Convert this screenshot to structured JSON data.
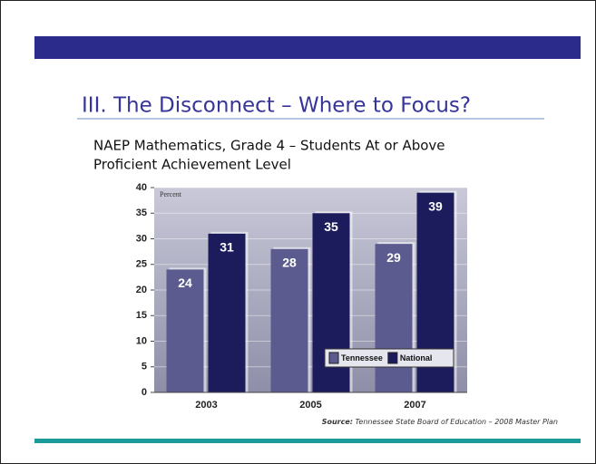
{
  "slide_title": "III. The Disconnect – Where to Focus?",
  "chart_data": {
    "type": "bar",
    "title": [
      "NAEP Mathematics, Grade 4 – Students At or Above",
      "Proficient Achievement Level"
    ],
    "y_label": "Percent",
    "categories": [
      "2003",
      "2005",
      "2007"
    ],
    "series": [
      {
        "name": "Tennessee",
        "color": "#5b5b8f",
        "values": [
          24,
          28,
          29
        ]
      },
      {
        "name": "National",
        "color": "#1c1c5c",
        "values": [
          31,
          35,
          39
        ]
      }
    ],
    "ylim": [
      0,
      40
    ],
    "yticks": [
      0,
      5,
      10,
      15,
      20,
      25,
      30,
      35,
      40
    ],
    "grid": true,
    "legend": "lower right",
    "source_label": "Source:",
    "source": "Tennessee State Board of Education – 2008 Master Plan"
  }
}
